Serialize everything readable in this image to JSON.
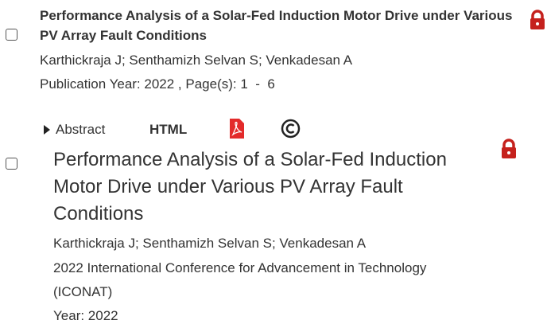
{
  "results": [
    {
      "title": "Performance Analysis of a Solar-Fed Induction Motor Drive under Various PV Array Fault Conditions",
      "authors": "Karthickraja J; Senthamizh Selvan S; Venkadesan A",
      "publication": "Publication Year: 2022 , Page(s): 1  -  6",
      "links": {
        "abstract": "Abstract",
        "html": "HTML"
      }
    },
    {
      "title": "Performance Analysis of a Solar-Fed Induction Motor Drive under Various PV Array Fault Conditions",
      "authors": "Karthickraja J; Senthamizh Selvan S; Venkadesan A",
      "conference": "2022 International Conference for Advancement in Technology (ICONAT)",
      "year": "Year: 2022"
    }
  ]
}
